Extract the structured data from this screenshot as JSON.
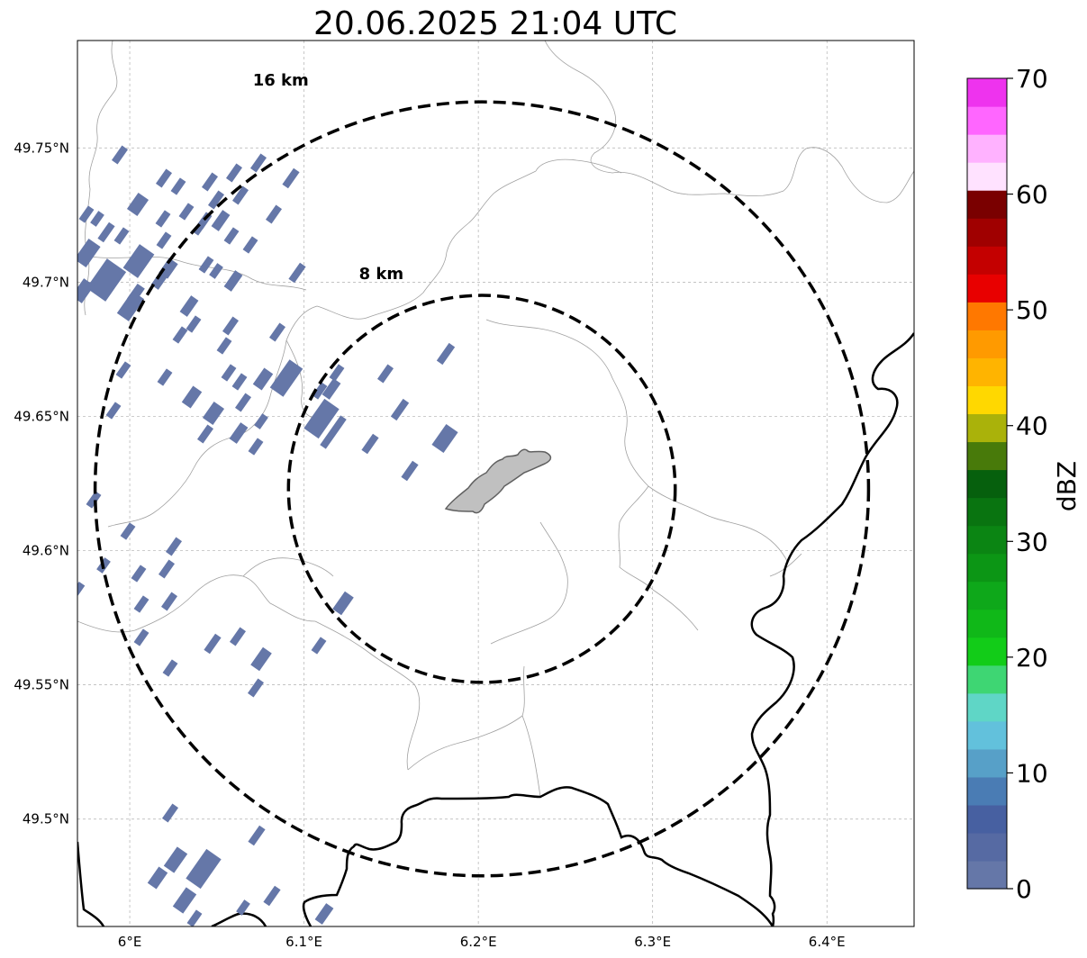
{
  "title": "20.06.2025 21:04 UTC",
  "map": {
    "lon_range": [
      5.97,
      6.45
    ],
    "lat_range": [
      49.46,
      49.79
    ],
    "center": {
      "lon": 6.202,
      "lat": 49.623
    },
    "lon_ticks": [
      {
        "value": 6.0,
        "label": "6°E"
      },
      {
        "value": 6.1,
        "label": "6.1°E"
      },
      {
        "value": 6.2,
        "label": "6.2°E"
      },
      {
        "value": 6.3,
        "label": "6.3°E"
      },
      {
        "value": 6.4,
        "label": "6.4°E"
      }
    ],
    "lat_ticks": [
      {
        "value": 49.75,
        "label": "49.75°N"
      },
      {
        "value": 49.7,
        "label": "49.7°N"
      },
      {
        "value": 49.65,
        "label": "49.65°N"
      },
      {
        "value": 49.6,
        "label": "49.6°N"
      },
      {
        "value": 49.55,
        "label": "49.55°N"
      },
      {
        "value": 49.5,
        "label": "49.5°N"
      }
    ],
    "grid": true,
    "range_rings": [
      {
        "radius_km": 8,
        "label": "8 km"
      },
      {
        "radius_km": 16,
        "label": "16 km"
      }
    ]
  },
  "colorbar": {
    "label": "dBZ",
    "min": 0,
    "max": 70,
    "step": 2.5,
    "tick_labels": [
      "0",
      "10",
      "20",
      "30",
      "40",
      "50",
      "60",
      "70"
    ],
    "colors": [
      "#6577a8",
      "#566aa3",
      "#4760a1",
      "#4a7cb4",
      "#57a0c8",
      "#62c1dc",
      "#5fd6c6",
      "#3ed673",
      "#12cc18",
      "#10b818",
      "#0ea81a",
      "#0c9615",
      "#0b8513",
      "#097410",
      "#06600d",
      "#487a0a",
      "#aab20a",
      "#ffd800",
      "#ffb400",
      "#ff9a00",
      "#ff7800",
      "#e80000",
      "#c40000",
      "#a00000",
      "#7a0000",
      "#ffe2ff",
      "#ffb2ff",
      "#ff66ff",
      "#ee33ee"
    ]
  },
  "echo_color": "#6577a8",
  "gray_area_color": "#c0c0c0"
}
